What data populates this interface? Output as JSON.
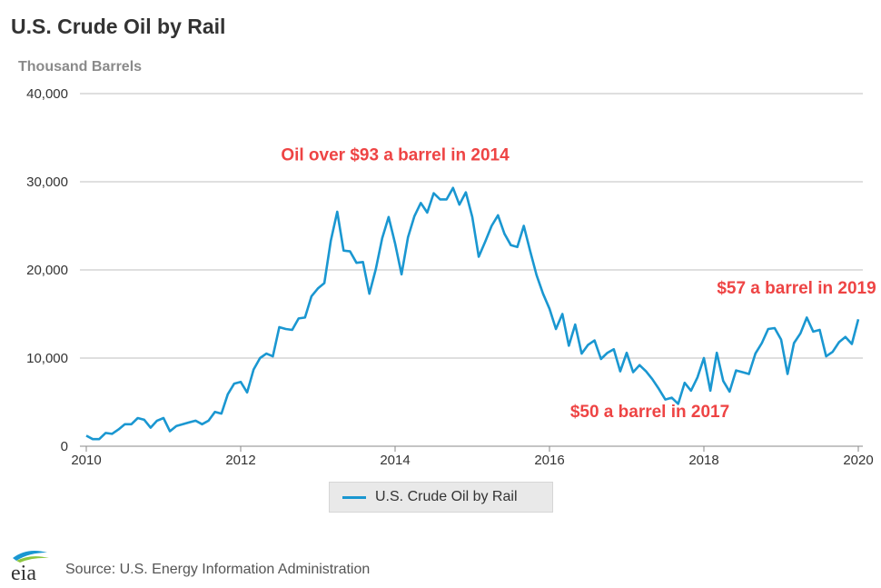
{
  "header": {
    "title": "U.S. Crude Oil by Rail",
    "unit_label": "Thousand Barrels"
  },
  "footer": {
    "source": "Source: U.S. Energy Information Administration",
    "logo_text": "eia"
  },
  "colors": {
    "series": "#1a97d1",
    "annotation": "#ee4444",
    "grid": "#bfbfbf"
  },
  "chart_data": {
    "type": "line",
    "title": "U.S. Crude Oil by Rail",
    "ylabel": "Thousand Barrels",
    "xlim": [
      2010,
      2020.1
    ],
    "ylim": [
      0,
      40000
    ],
    "y_ticks": [
      0,
      10000,
      20000,
      30000,
      40000
    ],
    "y_tick_labels": [
      "0",
      "10,000",
      "20,000",
      "30,000",
      "40,000"
    ],
    "x_ticks": [
      2010,
      2012,
      2014,
      2016,
      2018,
      2020
    ],
    "x_tick_labels": [
      "2010",
      "2012",
      "2014",
      "2016",
      "2018",
      "2020"
    ],
    "grid": "horizontal",
    "legend_position": "bottom-center",
    "series": [
      {
        "name": "U.S. Crude Oil by Rail",
        "x": [
          2010.0,
          2010.083,
          2010.167,
          2010.25,
          2010.333,
          2010.417,
          2010.5,
          2010.583,
          2010.667,
          2010.75,
          2010.833,
          2010.917,
          2011.0,
          2011.083,
          2011.167,
          2011.25,
          2011.333,
          2011.417,
          2011.5,
          2011.583,
          2011.667,
          2011.75,
          2011.833,
          2011.917,
          2012.0,
          2012.083,
          2012.167,
          2012.25,
          2012.333,
          2012.417,
          2012.5,
          2012.583,
          2012.667,
          2012.75,
          2012.833,
          2012.917,
          2013.0,
          2013.083,
          2013.167,
          2013.25,
          2013.333,
          2013.417,
          2013.5,
          2013.583,
          2013.667,
          2013.75,
          2013.833,
          2013.917,
          2014.0,
          2014.083,
          2014.167,
          2014.25,
          2014.333,
          2014.417,
          2014.5,
          2014.583,
          2014.667,
          2014.75,
          2014.833,
          2014.917,
          2015.0,
          2015.083,
          2015.167,
          2015.25,
          2015.333,
          2015.417,
          2015.5,
          2015.583,
          2015.667,
          2015.75,
          2015.833,
          2015.917,
          2016.0,
          2016.083,
          2016.167,
          2016.25,
          2016.333,
          2016.417,
          2016.5,
          2016.583,
          2016.667,
          2016.75,
          2016.833,
          2016.917,
          2017.0,
          2017.083,
          2017.167,
          2017.25,
          2017.333,
          2017.417,
          2017.5,
          2017.583,
          2017.667,
          2017.75,
          2017.833,
          2017.917,
          2018.0,
          2018.083,
          2018.167,
          2018.25,
          2018.333,
          2018.417,
          2018.5,
          2018.583,
          2018.667,
          2018.75,
          2018.833,
          2018.917,
          2019.0,
          2019.083,
          2019.167,
          2019.25,
          2019.333,
          2019.417,
          2019.5,
          2019.583,
          2019.667,
          2019.75,
          2019.833,
          2019.917,
          2020.0
        ],
        "values": [
          1200,
          800,
          800,
          1500,
          1400,
          1900,
          2500,
          2500,
          3200,
          3000,
          2100,
          2900,
          3200,
          1700,
          2300,
          2500,
          2700,
          2900,
          2500,
          2900,
          3900,
          3700,
          5900,
          7100,
          7300,
          6100,
          8700,
          10000,
          10500,
          10200,
          13500,
          13300,
          13200,
          14500,
          14600,
          17000,
          17900,
          18500,
          23300,
          26600,
          22200,
          22100,
          20800,
          20900,
          17300,
          20100,
          23600,
          26000,
          23000,
          19500,
          23700,
          26100,
          27600,
          26500,
          28700,
          28000,
          28000,
          29300,
          27400,
          28800,
          26000,
          21500,
          23200,
          25000,
          26200,
          24100,
          22800,
          22600,
          25000,
          22100,
          19400,
          17300,
          15600,
          13300,
          15000,
          11400,
          13800,
          10500,
          11500,
          12000,
          9900,
          10600,
          11000,
          8500,
          10600,
          8400,
          9200,
          8500,
          7600,
          6500,
          5300,
          5500,
          4800,
          7200,
          6300,
          7800,
          10000,
          6300,
          10600,
          7400,
          6200,
          8600,
          8400,
          8200,
          10500,
          11700,
          13300,
          13400,
          12100,
          8200,
          11700,
          12800,
          14600,
          13000,
          13200,
          10200,
          10700,
          11800,
          12400,
          11600,
          14400
        ]
      }
    ],
    "annotations": [
      {
        "text": "Oil over $93 a barrel in 2014",
        "x": 2014.0,
        "y": 32400
      },
      {
        "text": "$57 a barrel in 2019",
        "x": 2019.2,
        "y": 17300
      },
      {
        "text": "$50 a barrel in 2017",
        "x": 2017.3,
        "y": 3300
      }
    ]
  }
}
